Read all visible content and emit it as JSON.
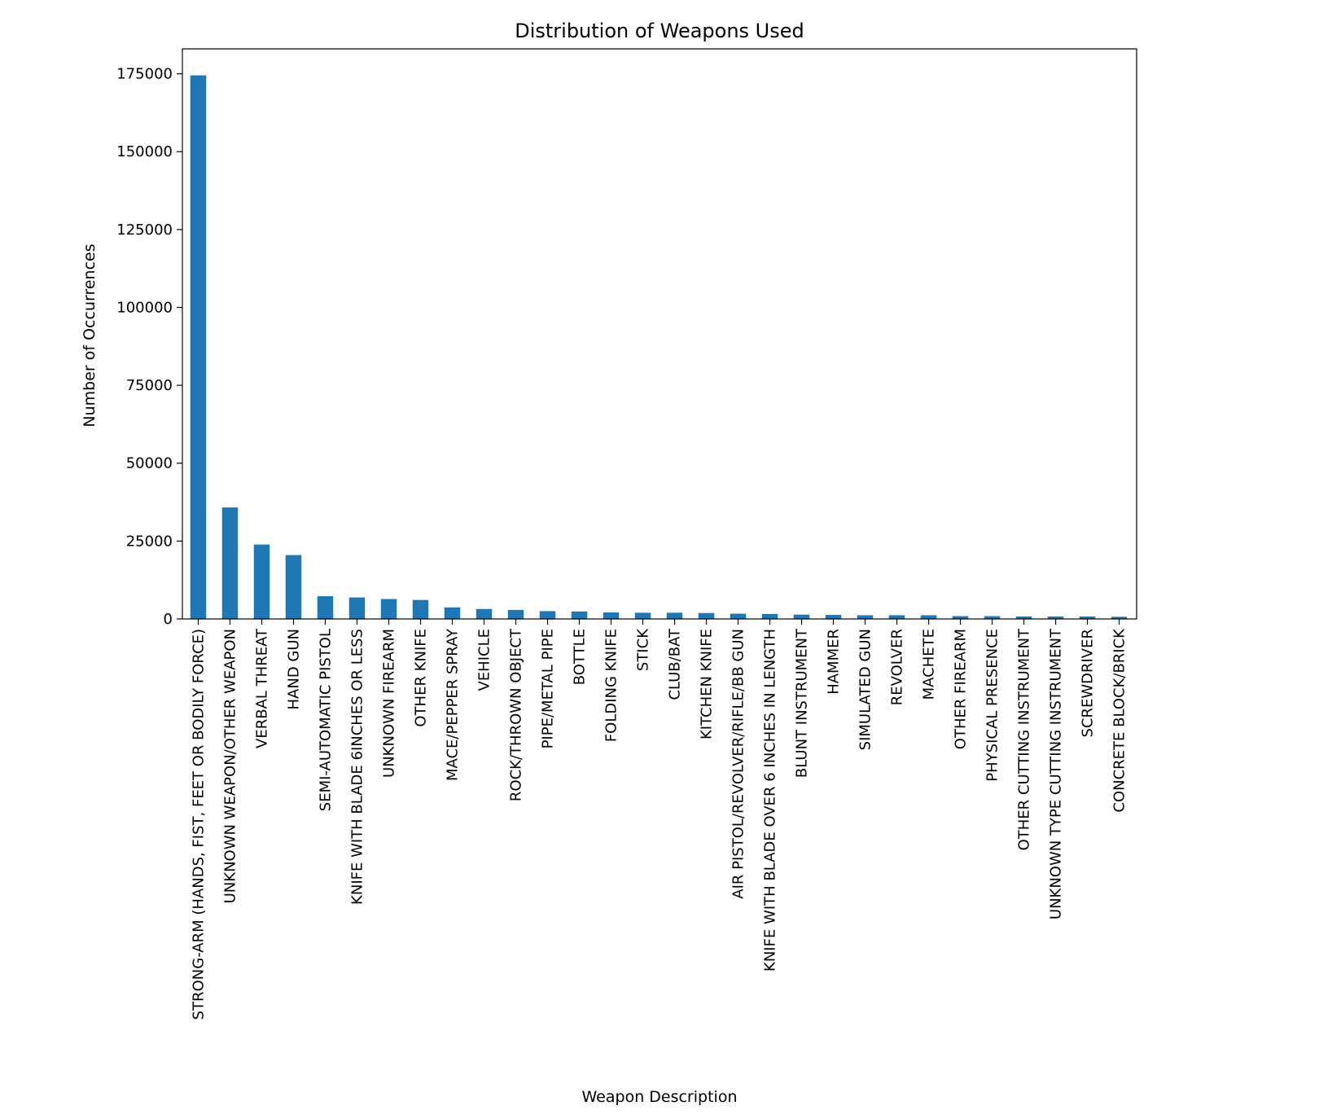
{
  "chart_data": {
    "type": "bar",
    "title": "Distribution of Weapons Used",
    "xlabel": "Weapon Description",
    "ylabel": "Number of Occurrences",
    "ylim": [
      0,
      183000
    ],
    "yticks": [
      0,
      25000,
      50000,
      75000,
      100000,
      125000,
      150000,
      175000
    ],
    "bar_color": "#1f77b4",
    "grid": false,
    "legend": "none",
    "categories": [
      "STRONG-ARM (HANDS, FIST, FEET OR BODILY FORCE)",
      "UNKNOWN WEAPON/OTHER WEAPON",
      "VERBAL THREAT",
      "HAND GUN",
      "SEMI-AUTOMATIC PISTOL",
      "KNIFE WITH BLADE 6INCHES OR LESS",
      "UNKNOWN FIREARM",
      "OTHER KNIFE",
      "MACE/PEPPER SPRAY",
      "VEHICLE",
      "ROCK/THROWN OBJECT",
      "PIPE/METAL PIPE",
      "BOTTLE",
      "FOLDING KNIFE",
      "STICK",
      "CLUB/BAT",
      "KITCHEN KNIFE",
      "AIR PISTOL/REVOLVER/RIFLE/BB GUN",
      "KNIFE WITH BLADE OVER 6 INCHES IN LENGTH",
      "BLUNT INSTRUMENT",
      "HAMMER",
      "SIMULATED GUN",
      "REVOLVER",
      "MACHETE",
      "OTHER FIREARM",
      "PHYSICAL PRESENCE",
      "OTHER CUTTING INSTRUMENT",
      "UNKNOWN TYPE CUTTING INSTRUMENT",
      "SCREWDRIVER",
      "CONCRETE BLOCK/BRICK"
    ],
    "values": [
      174500,
      35800,
      23900,
      20500,
      7300,
      6900,
      6400,
      6100,
      3700,
      3200,
      2900,
      2500,
      2400,
      2100,
      2000,
      2000,
      1900,
      1700,
      1600,
      1400,
      1300,
      1200,
      1200,
      1200,
      900,
      900,
      800,
      800,
      800,
      700
    ]
  }
}
